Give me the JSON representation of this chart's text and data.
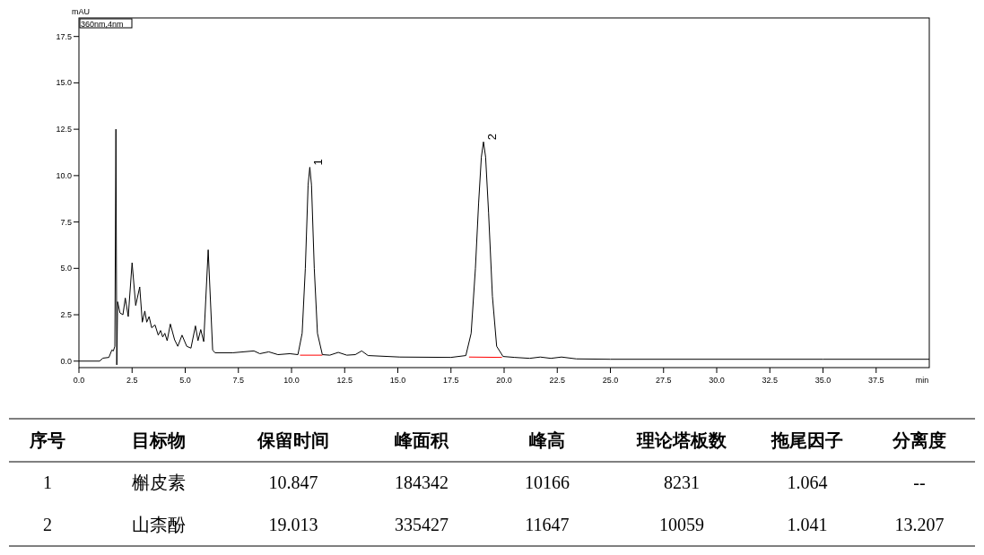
{
  "chart_data": {
    "type": "line",
    "ylabel": "mAU",
    "xlabel": "min",
    "legend": "top left",
    "xlim": [
      0,
      40
    ],
    "ylim": [
      -0.35,
      18.5
    ],
    "xticks": [
      {
        "value": 0,
        "label": "0.0"
      },
      {
        "value": 2.5,
        "label": "2.5"
      },
      {
        "value": 5,
        "label": "5.0"
      },
      {
        "value": 7.5,
        "label": "7.5"
      },
      {
        "value": 10,
        "label": "10.0"
      },
      {
        "value": 12.5,
        "label": "12.5"
      },
      {
        "value": 15,
        "label": "15.0"
      },
      {
        "value": 17.5,
        "label": "17.5"
      },
      {
        "value": 20,
        "label": "20.0"
      },
      {
        "value": 22.5,
        "label": "22.5"
      },
      {
        "value": 25,
        "label": "25.0"
      },
      {
        "value": 27.5,
        "label": "27.5"
      },
      {
        "value": 30,
        "label": "30.0"
      },
      {
        "value": 32.5,
        "label": "32.5"
      },
      {
        "value": 35,
        "label": "35.0"
      },
      {
        "value": 37.5,
        "label": "37.5"
      }
    ],
    "yticks": [
      {
        "value": 0,
        "label": "0.0"
      },
      {
        "value": 2.5,
        "label": "2.5"
      },
      {
        "value": 5,
        "label": "5.0"
      },
      {
        "value": 7.5,
        "label": "7.5"
      },
      {
        "value": 10,
        "label": "10.0"
      },
      {
        "value": 12.5,
        "label": "12.5"
      },
      {
        "value": 15,
        "label": "15.0"
      },
      {
        "value": 17.5,
        "label": "17.5"
      }
    ],
    "series": [
      {
        "name": "360nm,4nm",
        "color": "#000000",
        "x": [
          0,
          0.97,
          1.13,
          1.41,
          1.55,
          1.62,
          1.69,
          1.74,
          1.78,
          1.82,
          1.93,
          2.07,
          2.18,
          2.32,
          2.5,
          2.67,
          2.86,
          2.98,
          3.1,
          3.19,
          3.3,
          3.42,
          3.58,
          3.73,
          3.84,
          3.94,
          4.04,
          4.15,
          4.3,
          4.5,
          4.65,
          4.85,
          5.07,
          5.27,
          5.48,
          5.6,
          5.73,
          5.87,
          6.08,
          6.29,
          6.4,
          7.25,
          8.23,
          8.51,
          8.93,
          9.36,
          9.92,
          10.3,
          10.5,
          10.65,
          10.78,
          10.86,
          10.94,
          11.07,
          11.22,
          11.45,
          11.8,
          12.2,
          12.6,
          13.0,
          13.3,
          13.6,
          15.1,
          17.5,
          18.2,
          18.45,
          18.65,
          18.8,
          18.93,
          19.03,
          19.13,
          19.27,
          19.45,
          19.65,
          19.95,
          20.5,
          21.2,
          21.7,
          22.2,
          22.7,
          23.4,
          25,
          30,
          35,
          40
        ],
        "values": [
          0,
          0,
          0.16,
          0.2,
          0.6,
          0.55,
          0.8,
          12.5,
          -0.2,
          3.2,
          2.6,
          2.5,
          3.4,
          2.4,
          5.3,
          3.0,
          4.0,
          2.1,
          2.7,
          2.1,
          2.4,
          1.8,
          1.95,
          1.4,
          1.65,
          1.3,
          1.5,
          1.1,
          2.0,
          1.15,
          0.8,
          1.4,
          0.8,
          0.7,
          1.9,
          1.1,
          1.7,
          1.05,
          6.0,
          0.6,
          0.45,
          0.45,
          0.55,
          0.4,
          0.5,
          0.35,
          0.4,
          0.35,
          1.5,
          5.0,
          9.5,
          10.45,
          9.5,
          5.0,
          1.5,
          0.35,
          0.32,
          0.47,
          0.32,
          0.35,
          0.55,
          0.3,
          0.22,
          0.2,
          0.3,
          1.5,
          5.0,
          8.5,
          11.0,
          11.82,
          11.0,
          8.0,
          3.5,
          0.8,
          0.25,
          0.2,
          0.15,
          0.22,
          0.15,
          0.22,
          0.12,
          0.1,
          0.1,
          0.1,
          0.1
        ]
      },
      {
        "color": "#ff0000",
        "x": [
          10.4,
          11.45
        ],
        "values": [
          0.32,
          0.32
        ]
      },
      {
        "color": "#ff0000",
        "x": [
          18.35,
          19.9
        ],
        "values": [
          0.22,
          0.2
        ]
      }
    ],
    "annotations": [
      {
        "text": "1",
        "x": 10.86,
        "y": 10.45
      },
      {
        "text": "2",
        "x": 19.03,
        "y": 11.82
      },
      "序号",
      "目标物",
      "保留时间",
      "峰面积",
      "峰高",
      "理论塔板数",
      "拖尾因子",
      "分离度",
      "1",
      "槲皮素",
      "10.847",
      "184342",
      "10166",
      "8231",
      "1.064",
      "--",
      "2",
      "山柰酚",
      "19.013",
      "335427",
      "11647",
      "10059",
      "1.041",
      "13.207"
    ]
  }
}
